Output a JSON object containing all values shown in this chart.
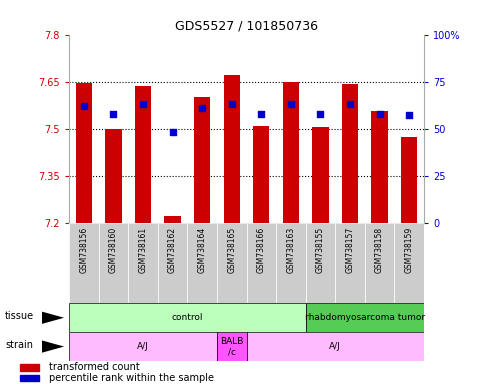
{
  "title": "GDS5527 / 101850736",
  "samples": [
    "GSM738156",
    "GSM738160",
    "GSM738161",
    "GSM738162",
    "GSM738164",
    "GSM738165",
    "GSM738166",
    "GSM738163",
    "GSM738155",
    "GSM738157",
    "GSM738158",
    "GSM738159"
  ],
  "transformed_counts": [
    7.645,
    7.5,
    7.635,
    7.222,
    7.6,
    7.672,
    7.51,
    7.65,
    7.505,
    7.643,
    7.555,
    7.472
  ],
  "percentile_ranks": [
    62,
    58,
    63,
    48,
    61,
    63,
    58,
    63,
    58,
    63,
    58,
    57
  ],
  "ylim_left": [
    7.2,
    7.8
  ],
  "ylim_right": [
    0,
    100
  ],
  "yticks_left": [
    7.2,
    7.35,
    7.5,
    7.65,
    7.8
  ],
  "yticks_right": [
    0,
    25,
    50,
    75,
    100
  ],
  "ytick_labels_left": [
    "7.2",
    "7.35",
    "7.5",
    "7.65",
    "7.8"
  ],
  "ytick_labels_right": [
    "0",
    "25",
    "50",
    "75",
    "100%"
  ],
  "hlines": [
    7.35,
    7.5,
    7.65
  ],
  "bar_color": "#cc0000",
  "dot_color": "#0000cc",
  "bar_bottom": 7.2,
  "tissue_groups": [
    {
      "label": "control",
      "start": 0,
      "end": 8,
      "color": "#bbffbb"
    },
    {
      "label": "rhabdomyosarcoma tumor",
      "start": 8,
      "end": 12,
      "color": "#55cc55"
    }
  ],
  "strain_groups": [
    {
      "label": "A/J",
      "start": 0,
      "end": 5,
      "color": "#ffbbff"
    },
    {
      "label": "BALB\n/c",
      "start": 5,
      "end": 6,
      "color": "#ff55ff"
    },
    {
      "label": "A/J",
      "start": 6,
      "end": 12,
      "color": "#ffbbff"
    }
  ],
  "tissue_label": "tissue",
  "strain_label": "strain",
  "bar_width": 0.55,
  "tick_bg_color": "#cccccc",
  "spine_color": "#aaaaaa"
}
